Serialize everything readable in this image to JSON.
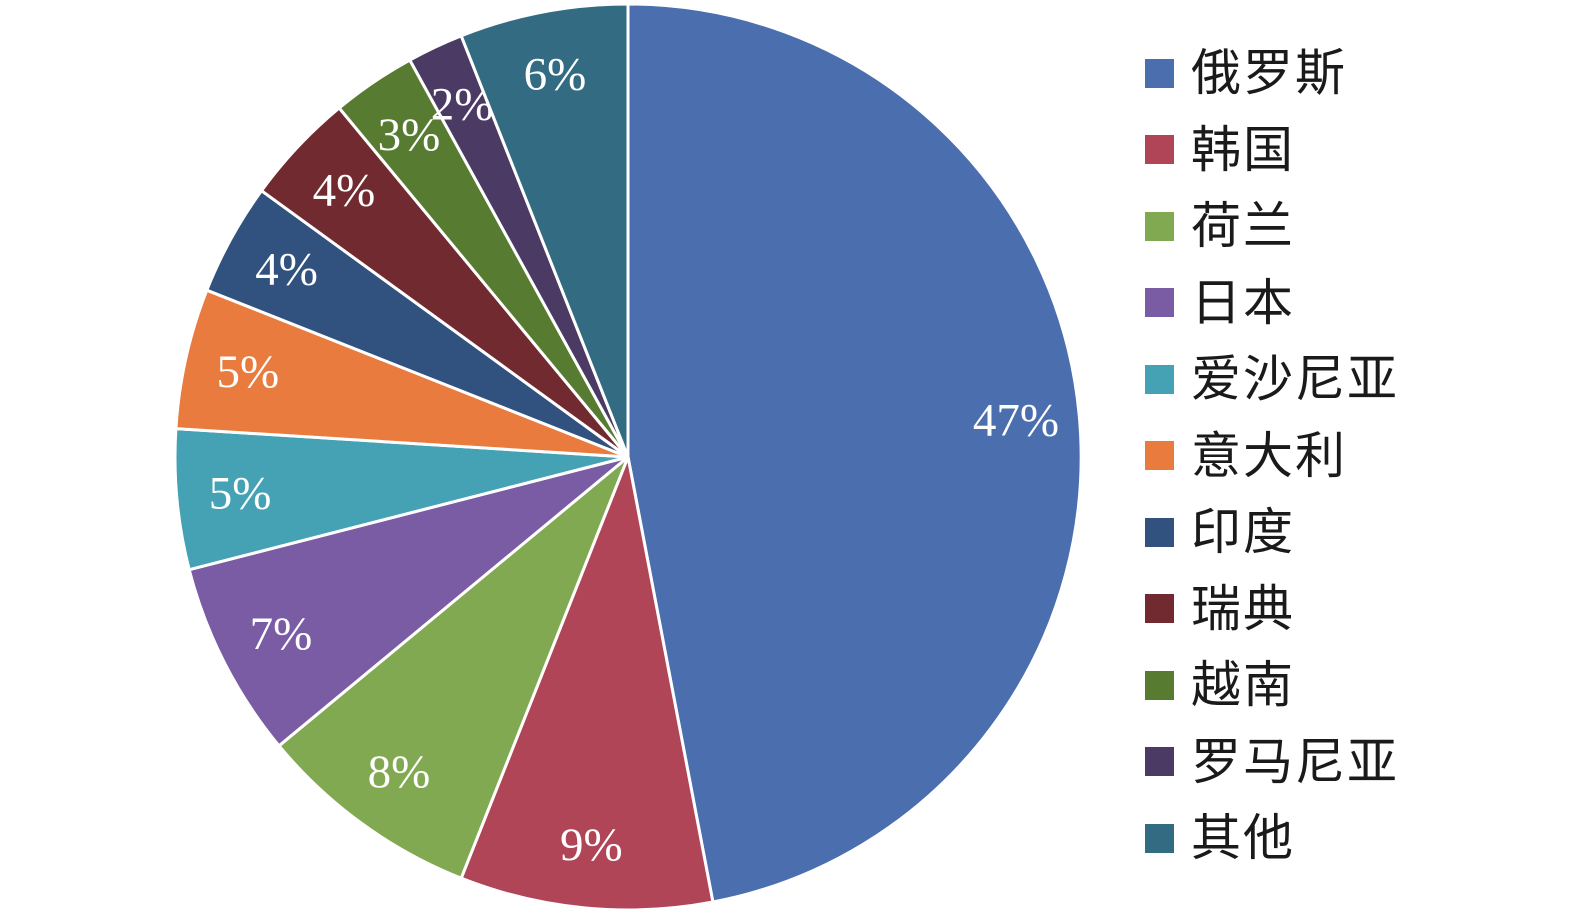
{
  "chart_data": {
    "type": "pie",
    "title": "",
    "legend_position": "right",
    "start_angle_deg": 0,
    "direction": "clockwise",
    "background": "#FFFFFF",
    "separator_color": "#FFFFFF",
    "data_label_color": "#FFFFFF",
    "label_radius_fraction": 0.86,
    "slices": [
      {
        "name": "russia",
        "label": "俄罗斯",
        "value_pct": 47,
        "data_label": "47%",
        "color": "#4B6FAE"
      },
      {
        "name": "south-korea",
        "label": "韩国",
        "value_pct": 9,
        "data_label": "9%",
        "color": "#B04558"
      },
      {
        "name": "netherlands",
        "label": "荷兰",
        "value_pct": 8,
        "data_label": "8%",
        "color": "#81A951"
      },
      {
        "name": "japan",
        "label": "日本",
        "value_pct": 7,
        "data_label": "7%",
        "color": "#7A5CA5"
      },
      {
        "name": "estonia",
        "label": "爱沙尼亚",
        "value_pct": 5,
        "data_label": "5%",
        "color": "#45A1B4"
      },
      {
        "name": "italy",
        "label": "意大利",
        "value_pct": 5,
        "data_label": "5%",
        "color": "#E87B3D"
      },
      {
        "name": "india",
        "label": "印度",
        "value_pct": 4,
        "data_label": "4%",
        "color": "#31517E"
      },
      {
        "name": "sweden",
        "label": "瑞典",
        "value_pct": 4,
        "data_label": "4%",
        "color": "#712B30"
      },
      {
        "name": "vietnam",
        "label": "越南",
        "value_pct": 3,
        "data_label": "3%",
        "color": "#567B31"
      },
      {
        "name": "romania",
        "label": "罗马尼亚",
        "value_pct": 2,
        "data_label": "2%",
        "color": "#4B3A64"
      },
      {
        "name": "other",
        "label": "其他",
        "value_pct": 6,
        "data_label": "6%",
        "color": "#336C82"
      }
    ]
  }
}
